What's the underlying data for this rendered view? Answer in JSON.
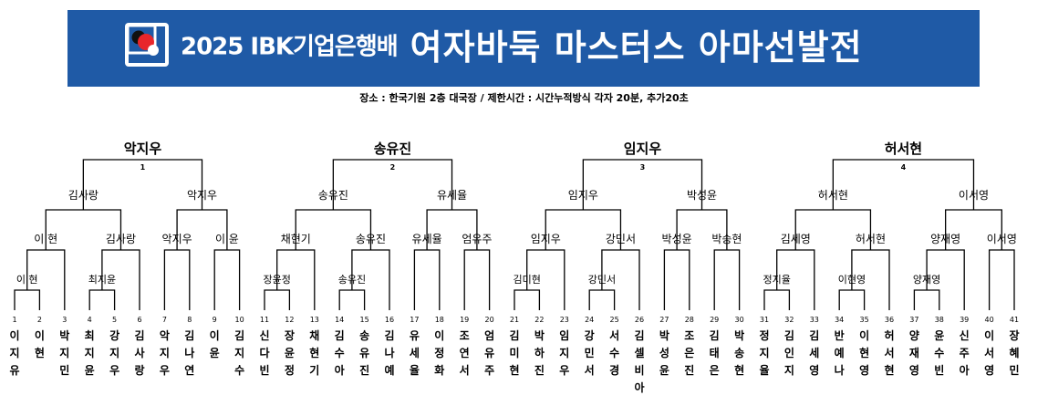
{
  "banner": {
    "sponsor": "2025 IBK기업은행배",
    "title": "여자바둑 마스터스 아마선발전",
    "background": "#1f5aa6",
    "logo_colors": [
      "#e8262b",
      "#111111",
      "#ffffff",
      "#1f5aa6"
    ]
  },
  "info": "장소 : 한국기원 2층 대국장 /  제한시간 : 시간누적방식 각자 20분, 추가20초",
  "groups": [
    {
      "number": "1",
      "qualifier": "악지우"
    },
    {
      "number": "2",
      "qualifier": "송유진"
    },
    {
      "number": "3",
      "qualifier": "임지우"
    },
    {
      "number": "4",
      "qualifier": "허서현"
    }
  ],
  "players": [
    {
      "seed": "1",
      "name": "이지유"
    },
    {
      "seed": "2",
      "name": "이현"
    },
    {
      "seed": "3",
      "name": "박지민"
    },
    {
      "seed": "4",
      "name": "최지윤"
    },
    {
      "seed": "5",
      "name": "강지우"
    },
    {
      "seed": "6",
      "name": "김사랑"
    },
    {
      "seed": "7",
      "name": "악지우"
    },
    {
      "seed": "8",
      "name": "김나연"
    },
    {
      "seed": "9",
      "name": "이윤"
    },
    {
      "seed": "10",
      "name": "김지수"
    },
    {
      "seed": "11",
      "name": "신다빈"
    },
    {
      "seed": "12",
      "name": "장윤정"
    },
    {
      "seed": "13",
      "name": "채현기"
    },
    {
      "seed": "14",
      "name": "김수아"
    },
    {
      "seed": "15",
      "name": "송유진"
    },
    {
      "seed": "16",
      "name": "김나예"
    },
    {
      "seed": "17",
      "name": "유세율"
    },
    {
      "seed": "18",
      "name": "이정화"
    },
    {
      "seed": "19",
      "name": "조연서"
    },
    {
      "seed": "20",
      "name": "엄유주"
    },
    {
      "seed": "21",
      "name": "김미현"
    },
    {
      "seed": "22",
      "name": "박하진"
    },
    {
      "seed": "23",
      "name": "임지우"
    },
    {
      "seed": "24",
      "name": "강민서"
    },
    {
      "seed": "25",
      "name": "서수경"
    },
    {
      "seed": "26",
      "name": "김셀비아"
    },
    {
      "seed": "27",
      "name": "박성윤"
    },
    {
      "seed": "28",
      "name": "조은진"
    },
    {
      "seed": "29",
      "name": "김태은"
    },
    {
      "seed": "30",
      "name": "박송현"
    },
    {
      "seed": "31",
      "name": "정지율"
    },
    {
      "seed": "32",
      "name": "김인지"
    },
    {
      "seed": "33",
      "name": "김세영"
    },
    {
      "seed": "34",
      "name": "반예나"
    },
    {
      "seed": "35",
      "name": "이현영"
    },
    {
      "seed": "36",
      "name": "허서현"
    },
    {
      "seed": "37",
      "name": "양재영"
    },
    {
      "seed": "38",
      "name": "윤수빈"
    },
    {
      "seed": "39",
      "name": "신주아"
    },
    {
      "seed": "40",
      "name": "이서영"
    },
    {
      "seed": "41",
      "name": "장혜민"
    }
  ],
  "round1": [
    {
      "pair": [
        "1",
        "2"
      ],
      "winner": "이 현"
    },
    {
      "pair": [
        "4",
        "5"
      ],
      "winner": "최지윤"
    },
    {
      "pair": [
        "11",
        "12"
      ],
      "winner": "장윤정"
    },
    {
      "pair": [
        "14",
        "15"
      ],
      "winner": "송유진"
    },
    {
      "pair": [
        "21",
        "22"
      ],
      "winner": "김미현"
    },
    {
      "pair": [
        "24",
        "25"
      ],
      "winner": "강민서"
    },
    {
      "pair": [
        "31",
        "32"
      ],
      "winner": "정지율"
    },
    {
      "pair": [
        "34",
        "35"
      ],
      "winner": "이현영"
    },
    {
      "pair": [
        "37",
        "38"
      ],
      "winner": "양재영"
    }
  ],
  "round2": [
    {
      "winner": "이 현"
    },
    {
      "winner": "김사랑"
    },
    {
      "winner": "악지우"
    },
    {
      "winner": "이 윤"
    },
    {
      "winner": "채현기"
    },
    {
      "winner": "송유진"
    },
    {
      "winner": "유세율"
    },
    {
      "winner": "엄유주"
    },
    {
      "winner": "임지우"
    },
    {
      "winner": "강민서"
    },
    {
      "winner": "박성윤"
    },
    {
      "winner": "박송현"
    },
    {
      "winner": "김세영"
    },
    {
      "winner": "허서현"
    },
    {
      "winner": "양재영"
    },
    {
      "winner": "이서영"
    }
  ],
  "round3": [
    {
      "winner": "김사랑"
    },
    {
      "winner": "악지우"
    },
    {
      "winner": "송유진"
    },
    {
      "winner": "유세율"
    },
    {
      "winner": "임지우"
    },
    {
      "winner": "박성윤"
    },
    {
      "winner": "허서현"
    },
    {
      "winner": "이서영"
    }
  ]
}
